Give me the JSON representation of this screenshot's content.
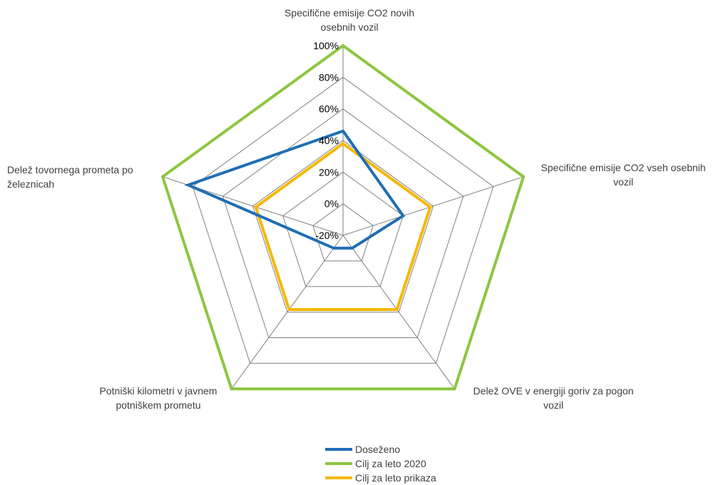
{
  "chart_data": {
    "type": "radar",
    "categories": [
      "Specifične emisije CO2 novih osebnih vozil",
      "Specifične emisije CO2 vseh osebnih vozil",
      "Delež OVE v energiji goriv za pogon vozil",
      "Potniški kilometri v javnem potniškem prometu",
      "Delež tovornega prometa po železnicah"
    ],
    "axis_labels": [
      [
        "Specifične emisije CO2 novih",
        "osebnih vozil"
      ],
      [
        "Specifične emisije CO2 vseh osebnih",
        "vozil"
      ],
      [
        "Delež OVE v energiji goriv za pogon",
        "vozil"
      ],
      [
        "Potniški kilometri v javnem",
        "potniškem prometu"
      ],
      [
        "Delež tovornega prometa po",
        "železnicah"
      ]
    ],
    "rmin": -20,
    "rmax": 100,
    "ticks": [
      -20,
      0,
      20,
      40,
      60,
      80,
      100
    ],
    "tick_labels": [
      "-20%",
      "0%",
      "20%",
      "40%",
      "60%",
      "80%",
      "100%"
    ],
    "series": [
      {
        "name": "Doseženo",
        "color": "#1f6eb5",
        "values": [
          46,
          20,
          -10,
          -10,
          83
        ]
      },
      {
        "name": "Cilj za leto 2020",
        "color": "#8cc63f",
        "values": [
          100,
          100,
          100,
          100,
          100
        ]
      },
      {
        "name": "Cilj za leto prikaza",
        "color": "#f5b800",
        "values": [
          38,
          38,
          38,
          38,
          38
        ]
      }
    ],
    "grid": true,
    "grid_color": "#808080",
    "legend_position": "bottom"
  }
}
